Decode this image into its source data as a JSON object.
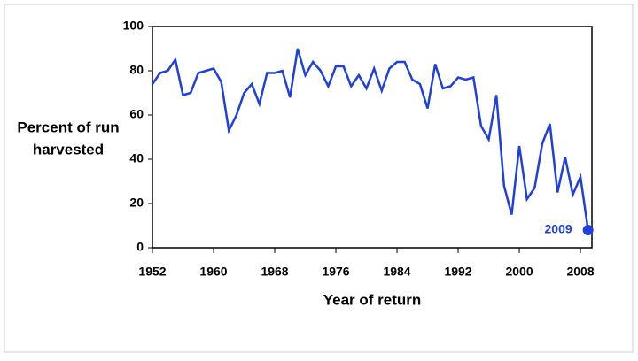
{
  "chart_data": {
    "type": "line",
    "x": [
      1952,
      1953,
      1954,
      1955,
      1956,
      1957,
      1958,
      1959,
      1960,
      1961,
      1962,
      1963,
      1964,
      1965,
      1966,
      1967,
      1968,
      1969,
      1970,
      1971,
      1972,
      1973,
      1974,
      1975,
      1976,
      1977,
      1978,
      1979,
      1980,
      1981,
      1982,
      1983,
      1984,
      1985,
      1986,
      1987,
      1988,
      1989,
      1990,
      1991,
      1992,
      1993,
      1994,
      1995,
      1996,
      1997,
      1998,
      1999,
      2000,
      2001,
      2002,
      2003,
      2004,
      2005,
      2006,
      2007,
      2008,
      2009
    ],
    "series": [
      {
        "color": "#1f3fdf",
        "values": [
          74,
          79,
          80,
          85,
          69,
          70,
          79,
          80,
          81,
          75,
          53,
          60,
          70,
          74,
          65,
          79,
          79,
          80,
          68,
          90,
          78,
          84,
          80,
          73,
          82,
          82,
          73,
          78,
          72,
          81,
          71,
          81,
          84,
          84,
          76,
          74,
          63,
          83,
          72,
          73,
          77,
          76,
          77,
          55,
          49,
          69,
          28,
          15,
          46,
          22,
          27,
          47,
          56,
          25,
          41,
          24,
          32,
          8
        ]
      }
    ],
    "annotation": "2009",
    "xlabel": "Year of return",
    "ylabel": [
      "Percent of run",
      "harvested"
    ],
    "xlim": [
      1952,
      2009.5
    ],
    "ylim": [
      0,
      100
    ],
    "xticks": [
      1952,
      1960,
      1968,
      1976,
      1984,
      1992,
      2000,
      2008
    ],
    "yticks": [
      0,
      20,
      40,
      60,
      80,
      100
    ]
  }
}
